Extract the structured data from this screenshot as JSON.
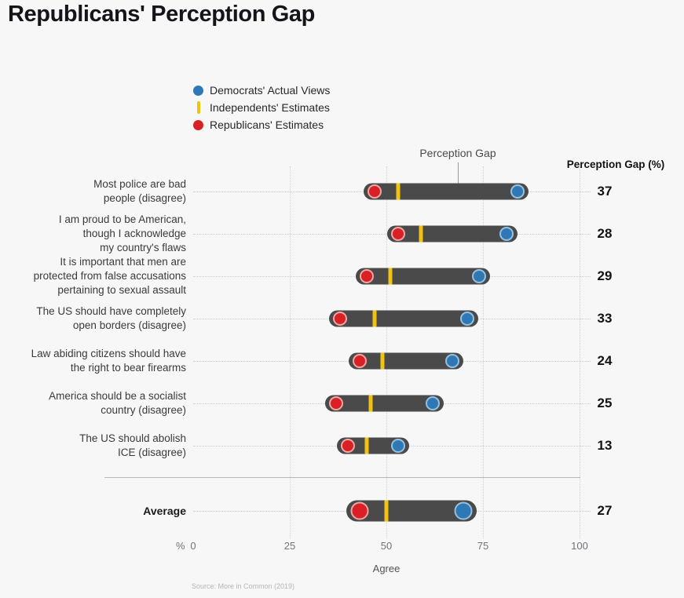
{
  "title": "Republicans' Perception Gap",
  "legend": [
    {
      "label": "Democrats' Actual Views"
    },
    {
      "label": "Independents' Estimates"
    },
    {
      "label": "Republicans' Estimates"
    }
  ],
  "annotation_label": "Perception Gap",
  "gap_column_header": "Perception Gap (%)",
  "axis": {
    "prefix": "%",
    "ticks": [
      "0",
      "25",
      "50",
      "75",
      "100"
    ],
    "xlabel": "Agree"
  },
  "source": "Source: More in Common (2019)",
  "colors": {
    "democrats_actual": "#2e79b5",
    "independents_estimates": "#f0c311",
    "republicans_estimates": "#d92025",
    "bar": "#4a4a4b",
    "background": "#f7f7f7"
  },
  "chart_data": {
    "type": "dumbbell",
    "title": "Republicans' Perception Gap",
    "xlabel": "Agree",
    "unit": "% agreement",
    "xlim": [
      0,
      100
    ],
    "x_ticks": [
      0,
      25,
      50,
      75,
      100
    ],
    "series_legend": [
      "Democrats' Actual Views",
      "Independents' Estimates",
      "Republicans' Estimates"
    ],
    "rows": [
      {
        "lines": [
          "Most police are bad",
          "people (disagree)"
        ],
        "rep": 47,
        "ind": 53,
        "dem": 84,
        "gap": 37
      },
      {
        "lines": [
          "I am proud to be American,",
          "though I acknowledge",
          "my country's flaws"
        ],
        "rep": 53,
        "ind": 59,
        "dem": 81,
        "gap": 28
      },
      {
        "lines": [
          "It is important that men are",
          "protected from false accusations",
          "pertaining to sexual assault"
        ],
        "rep": 45,
        "ind": 51,
        "dem": 74,
        "gap": 29
      },
      {
        "lines": [
          "The US should have completely",
          "open borders (disagree)"
        ],
        "rep": 38,
        "ind": 47,
        "dem": 71,
        "gap": 33
      },
      {
        "lines": [
          "Law abiding citizens should have",
          "the right to bear firearms"
        ],
        "rep": 43,
        "ind": 49,
        "dem": 67,
        "gap": 24
      },
      {
        "lines": [
          "America should be a socialist",
          "country (disagree)"
        ],
        "rep": 37,
        "ind": 46,
        "dem": 62,
        "gap": 25
      },
      {
        "lines": [
          "The US should abolish",
          "ICE (disagree)"
        ],
        "rep": 40,
        "ind": 45,
        "dem": 53,
        "gap": 13
      }
    ],
    "average": {
      "label": "Average",
      "rep": 43,
      "ind": 50,
      "dem": 70,
      "gap": 27
    }
  }
}
